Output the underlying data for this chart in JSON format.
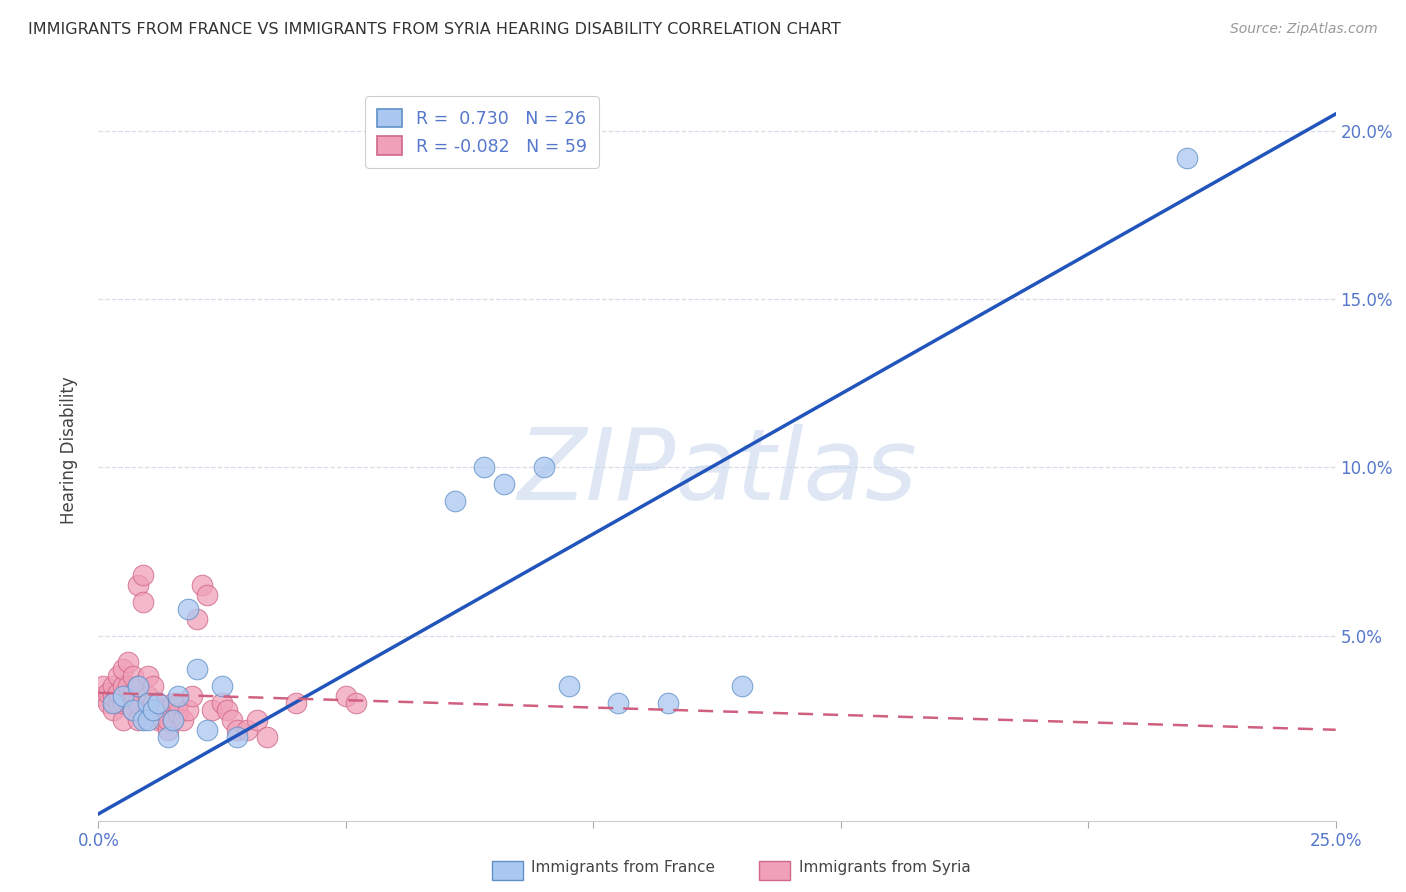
{
  "title": "IMMIGRANTS FROM FRANCE VS IMMIGRANTS FROM SYRIA HEARING DISABILITY CORRELATION CHART",
  "source": "Source: ZipAtlas.com",
  "ylabel": "Hearing Disability",
  "watermark": "ZIPatlas",
  "xlim": [
    0.0,
    0.25
  ],
  "ylim": [
    -0.005,
    0.215
  ],
  "xtick_positions": [
    0.0,
    0.05,
    0.1,
    0.15,
    0.2,
    0.25
  ],
  "xtick_labels_show": {
    "0.0": "0.0%",
    "0.25": "25.0%"
  },
  "yticks_right": [
    0.05,
    0.1,
    0.15,
    0.2
  ],
  "ytick_right_labels": [
    "5.0%",
    "10.0%",
    "15.0%",
    "20.0%"
  ],
  "france_color": "#aac8f0",
  "france_edge": "#6090c8",
  "syria_color": "#f0a0b8",
  "syria_edge": "#d06888",
  "france_line_color": "#2255bb",
  "syria_line_color": "#d06080",
  "R_france": 0.73,
  "N_france": 26,
  "R_syria": -0.082,
  "N_syria": 59,
  "legend_label_france": "Immigrants from France",
  "legend_label_syria": "Immigrants from Syria",
  "france_scatter_x": [
    0.003,
    0.005,
    0.007,
    0.008,
    0.009,
    0.01,
    0.01,
    0.011,
    0.012,
    0.014,
    0.015,
    0.016,
    0.018,
    0.02,
    0.022,
    0.025,
    0.028,
    0.072,
    0.078,
    0.082,
    0.09,
    0.095,
    0.105,
    0.115,
    0.13,
    0.22
  ],
  "france_scatter_y": [
    0.03,
    0.032,
    0.028,
    0.035,
    0.025,
    0.03,
    0.025,
    0.028,
    0.03,
    0.02,
    0.025,
    0.032,
    0.058,
    0.04,
    0.022,
    0.035,
    0.02,
    0.09,
    0.1,
    0.095,
    0.1,
    0.035,
    0.03,
    0.03,
    0.035,
    0.192
  ],
  "syria_scatter_x": [
    0.001,
    0.001,
    0.002,
    0.002,
    0.003,
    0.003,
    0.003,
    0.004,
    0.004,
    0.004,
    0.005,
    0.005,
    0.005,
    0.005,
    0.006,
    0.006,
    0.006,
    0.007,
    0.007,
    0.007,
    0.008,
    0.008,
    0.008,
    0.008,
    0.009,
    0.009,
    0.01,
    0.01,
    0.01,
    0.011,
    0.011,
    0.011,
    0.012,
    0.012,
    0.013,
    0.013,
    0.014,
    0.014,
    0.015,
    0.015,
    0.016,
    0.016,
    0.017,
    0.018,
    0.019,
    0.02,
    0.021,
    0.022,
    0.023,
    0.025,
    0.026,
    0.027,
    0.028,
    0.03,
    0.032,
    0.034,
    0.04,
    0.05,
    0.052
  ],
  "syria_scatter_y": [
    0.032,
    0.035,
    0.03,
    0.033,
    0.028,
    0.032,
    0.035,
    0.03,
    0.033,
    0.038,
    0.025,
    0.03,
    0.035,
    0.04,
    0.03,
    0.035,
    0.042,
    0.028,
    0.033,
    0.038,
    0.025,
    0.03,
    0.035,
    0.065,
    0.06,
    0.068,
    0.028,
    0.032,
    0.038,
    0.028,
    0.03,
    0.035,
    0.025,
    0.03,
    0.025,
    0.028,
    0.022,
    0.025,
    0.025,
    0.03,
    0.027,
    0.03,
    0.025,
    0.028,
    0.032,
    0.055,
    0.065,
    0.062,
    0.028,
    0.03,
    0.028,
    0.025,
    0.022,
    0.022,
    0.025,
    0.02,
    0.03,
    0.032,
    0.03
  ],
  "france_trend_x": [
    0.0,
    0.25
  ],
  "france_trend_y": [
    -0.003,
    0.205
  ],
  "syria_trend_x": [
    0.0,
    0.25
  ],
  "syria_trend_y": [
    0.033,
    0.022
  ],
  "grid_color": "#d8dce8",
  "grid_linestyle": "--",
  "background_color": "#ffffff",
  "tick_color": "#aaaaaa",
  "label_color": "#5577cc",
  "title_color": "#333333",
  "source_color": "#999999",
  "ylabel_color": "#444444"
}
